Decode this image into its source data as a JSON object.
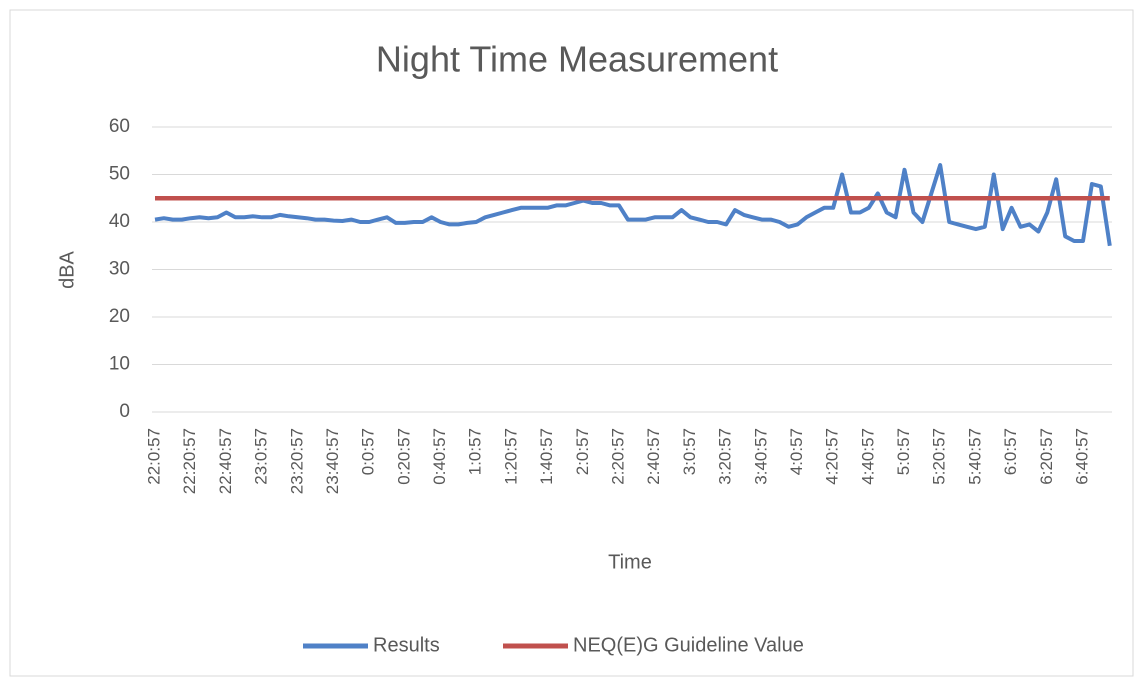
{
  "chart_data": {
    "type": "line",
    "title": "Night Time Measurement",
    "x_label": "Time",
    "y_label": "dBA",
    "categories": [
      "22:0:57",
      null,
      null,
      null,
      "22:20:57",
      null,
      null,
      null,
      "22:40:57",
      null,
      null,
      null,
      "23:0:57",
      null,
      null,
      null,
      "23:20:57",
      null,
      null,
      null,
      "23:40:57",
      null,
      null,
      null,
      "0:0:57",
      null,
      null,
      null,
      "0:20:57",
      null,
      null,
      null,
      "0:40:57",
      null,
      null,
      null,
      "1:0:57",
      null,
      null,
      null,
      "1:20:57",
      null,
      null,
      null,
      "1:40:57",
      null,
      null,
      null,
      "2:0:57",
      null,
      null,
      null,
      "2:20:57",
      null,
      null,
      null,
      "2:40:57",
      null,
      null,
      null,
      "3:0:57",
      null,
      null,
      null,
      "3:20:57",
      null,
      null,
      null,
      "3:40:57",
      null,
      null,
      null,
      "4:0:57",
      null,
      null,
      null,
      "4:20:57",
      null,
      null,
      null,
      "4:40:57",
      null,
      null,
      null,
      "5:0:57",
      null,
      null,
      null,
      "5:20:57",
      null,
      null,
      null,
      "5:40:57",
      null,
      null,
      null,
      "6:0:57",
      null,
      null,
      null,
      "6:20:57",
      null,
      null,
      null,
      "6:40:57",
      null,
      null,
      null
    ],
    "series": [
      {
        "name": "Results",
        "color": "#4f81c7",
        "values": [
          40.5,
          40.8,
          40.5,
          40.5,
          40.8,
          41,
          40.8,
          41,
          42,
          41,
          41,
          41.2,
          41,
          41,
          41.5,
          41.2,
          41,
          40.8,
          40.5,
          40.5,
          40.3,
          40.2,
          40.5,
          40,
          40,
          40.5,
          41,
          39.8,
          39.8,
          40,
          40,
          41,
          40,
          39.5,
          39.5,
          39.8,
          40,
          41,
          41.5,
          42,
          42.5,
          43,
          43,
          43,
          43,
          43.5,
          43.5,
          44,
          44.5,
          44,
          44,
          43.5,
          43.5,
          40.5,
          40.5,
          40.5,
          41,
          41,
          41,
          42.5,
          41,
          40.5,
          40,
          40,
          39.5,
          42.5,
          41.5,
          41,
          40.5,
          40.5,
          40,
          39,
          39.5,
          41,
          42,
          43,
          43,
          50,
          42,
          42,
          43,
          46,
          42,
          41,
          51,
          42,
          40,
          46,
          52,
          40,
          39.5,
          39,
          38.5,
          39,
          50,
          38.5,
          43,
          39,
          39.5,
          38,
          42,
          49,
          37,
          36,
          36,
          48,
          47.5,
          35
        ]
      },
      {
        "name": "NEQ(E)G Guideline Value",
        "color": "#c0504d",
        "values": [
          45,
          45,
          45,
          45,
          45,
          45,
          45,
          45,
          45,
          45,
          45,
          45,
          45,
          45,
          45,
          45,
          45,
          45,
          45,
          45,
          45,
          45,
          45,
          45,
          45,
          45,
          45,
          45,
          45,
          45,
          45,
          45,
          45,
          45,
          45,
          45,
          45,
          45,
          45,
          45,
          45,
          45,
          45,
          45,
          45,
          45,
          45,
          45,
          45,
          45,
          45,
          45,
          45,
          45,
          45,
          45,
          45,
          45,
          45,
          45,
          45,
          45,
          45,
          45,
          45,
          45,
          45,
          45,
          45,
          45,
          45,
          45,
          45,
          45,
          45,
          45,
          45,
          45,
          45,
          45,
          45,
          45,
          45,
          45,
          45,
          45,
          45,
          45,
          45,
          45,
          45,
          45,
          45,
          45,
          45,
          45,
          45,
          45,
          45,
          45,
          45,
          45,
          45,
          45,
          45,
          45,
          45,
          45
        ]
      }
    ],
    "ylim": [
      0,
      60
    ],
    "yticks": [
      0,
      10,
      20,
      30,
      40,
      50,
      60
    ],
    "grid": true,
    "legend": "bottom"
  }
}
